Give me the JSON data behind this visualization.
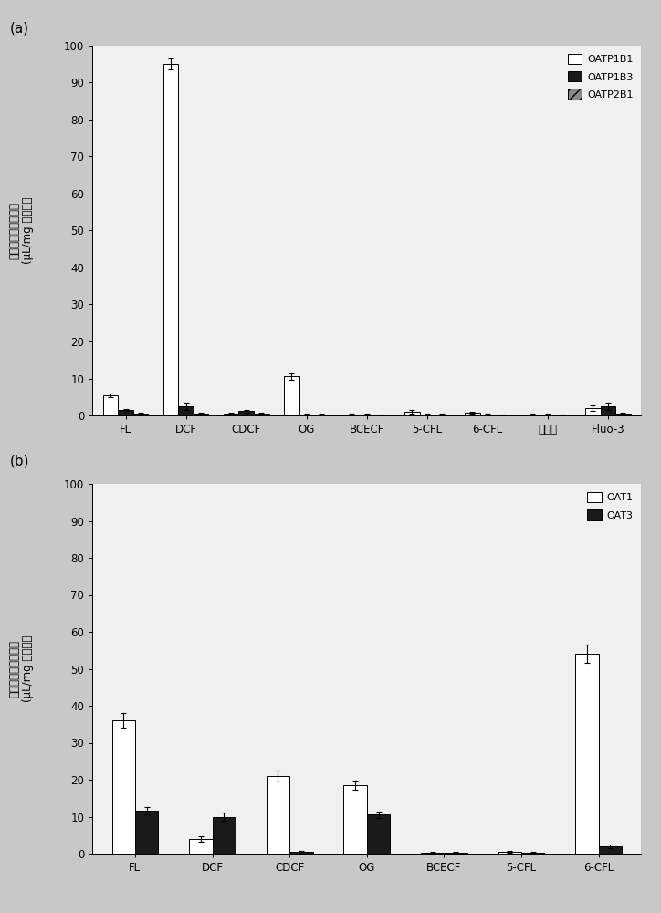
{
  "panel_a": {
    "categories": [
      "FL",
      "DCF",
      "CDCF",
      "OG",
      "BCECF",
      "5-CFL",
      "6-CFL",
      "馒黄绿",
      "Fluo-3"
    ],
    "OATP1B1": [
      5.5,
      95.0,
      0.5,
      10.5,
      0.3,
      1.0,
      0.8,
      0.2,
      2.0
    ],
    "OATP1B3": [
      1.5,
      2.5,
      1.2,
      0.3,
      0.3,
      0.3,
      0.3,
      0.3,
      2.5
    ],
    "OATP2B1": [
      0.5,
      0.5,
      0.5,
      0.3,
      0.2,
      0.3,
      0.2,
      0.2,
      0.5
    ],
    "OATP1B1_err": [
      0.5,
      1.5,
      0.3,
      0.8,
      0.2,
      0.5,
      0.3,
      0.2,
      0.8
    ],
    "OATP1B3_err": [
      0.3,
      1.0,
      0.4,
      0.2,
      0.1,
      0.2,
      0.2,
      0.2,
      1.0
    ],
    "OATP2B1_err": [
      0.2,
      0.2,
      0.2,
      0.1,
      0.1,
      0.1,
      0.1,
      0.1,
      0.2
    ],
    "ylim": [
      0,
      100
    ],
    "yticks": [
      0,
      10,
      20,
      30,
      40,
      50,
      60,
      70,
      80,
      90,
      100
    ],
    "ylabel_line1": "荧光素化合物的吸收",
    "ylabel_line2": "(μL/mg 蛋白质）",
    "legend_labels": [
      "OATP1B1",
      "OATP1B3",
      "OATP2B1"
    ]
  },
  "panel_b": {
    "categories": [
      "FL",
      "DCF",
      "CDCF",
      "OG",
      "BCECF",
      "5-CFL",
      "6-CFL"
    ],
    "OAT1": [
      36.0,
      4.0,
      21.0,
      18.5,
      0.3,
      0.5,
      54.0
    ],
    "OAT3": [
      11.5,
      10.0,
      0.5,
      10.5,
      0.3,
      0.3,
      2.0
    ],
    "OAT1_err": [
      2.0,
      0.8,
      1.5,
      1.2,
      0.2,
      0.2,
      2.5
    ],
    "OAT3_err": [
      1.0,
      1.0,
      0.3,
      0.8,
      0.2,
      0.2,
      0.5
    ],
    "ylim": [
      0,
      100
    ],
    "yticks": [
      0,
      10,
      20,
      30,
      40,
      50,
      60,
      70,
      80,
      90,
      100
    ],
    "ylabel_line1": "荧光素化合物的吸收",
    "ylabel_line2": "(μL/mg 蛋白质）",
    "legend_labels": [
      "OAT1",
      "OAT3"
    ]
  },
  "fig_bg": "#c8c8c8",
  "panel_bg": "#f0f0f0"
}
